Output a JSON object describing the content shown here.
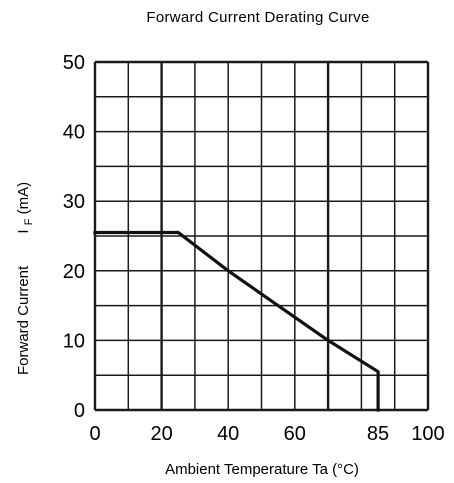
{
  "chart_data": {
    "type": "line",
    "title": "Forward Current Derating Curve",
    "xlabel": "Ambient Temperature Ta (°C)",
    "ylabel_prefix": "Forward Current",
    "ylabel_unit": "I",
    "ylabel_sub": "F",
    "ylabel_suffix": "(mA)",
    "xlim": [
      0,
      100
    ],
    "ylim": [
      0,
      50
    ],
    "x_ticks": [
      "0",
      "20",
      "40",
      "60",
      "85",
      "100"
    ],
    "x_tick_values": [
      0,
      20,
      40,
      60,
      85,
      100
    ],
    "y_ticks": [
      "0",
      "10",
      "20",
      "30",
      "40",
      "50"
    ],
    "y_tick_values": [
      0,
      10,
      20,
      30,
      40,
      50
    ],
    "x_grid": [
      0,
      10,
      20,
      30,
      40,
      50,
      60,
      70,
      80,
      90,
      100
    ],
    "y_grid": [
      0,
      5,
      10,
      15,
      20,
      25,
      30,
      35,
      40,
      45,
      50
    ],
    "emphasized_x_grid": [
      20,
      70
    ],
    "grid": true,
    "series": [
      {
        "x": [
          0,
          24,
          25,
          40,
          70,
          85,
          85
        ],
        "y": [
          25.5,
          25.5,
          25.5,
          20,
          10,
          5.5,
          0
        ]
      }
    ]
  }
}
